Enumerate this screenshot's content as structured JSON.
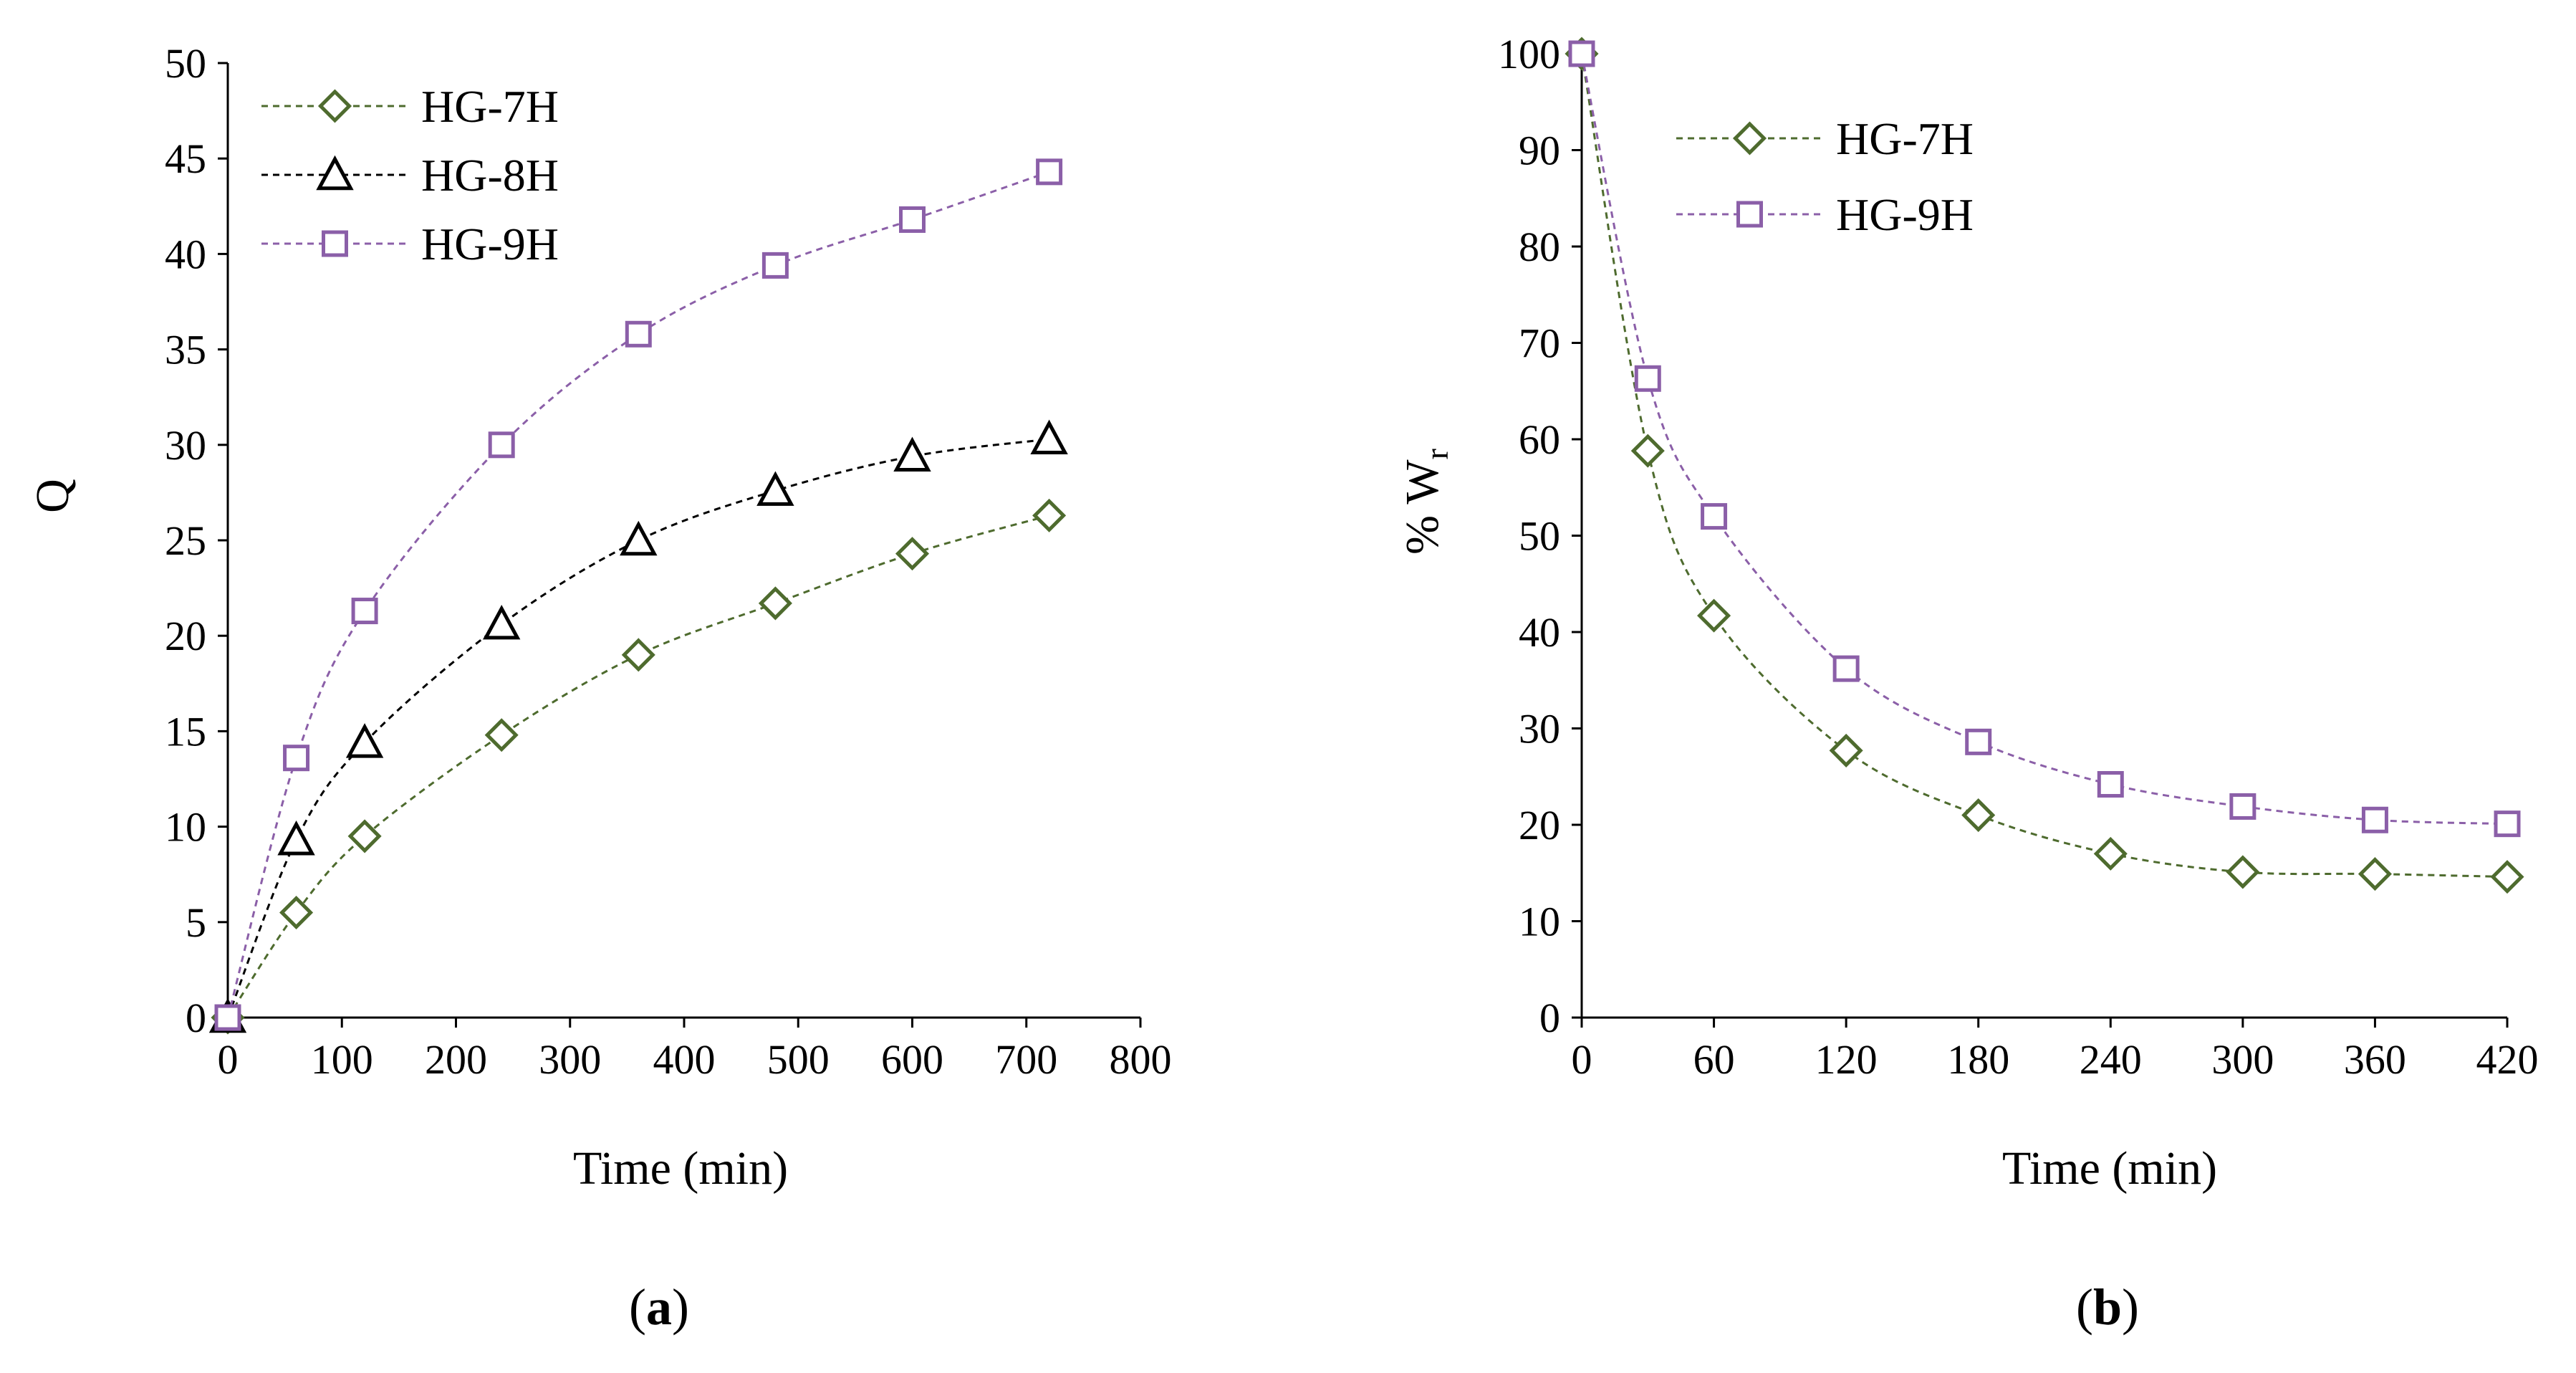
{
  "chart_data": [
    {
      "type": "line",
      "panel_label": "a",
      "title": "",
      "xlabel": "Time (min)",
      "ylabel": "Q",
      "xlim": [
        0,
        800
      ],
      "ylim": [
        0,
        50
      ],
      "xticks": [
        "0",
        "100",
        "200",
        "300",
        "400",
        "500",
        "600",
        "700",
        "800"
      ],
      "yticks": [
        "0",
        "5",
        "10",
        "15",
        "20",
        "25",
        "30",
        "35",
        "40",
        "45",
        "50"
      ],
      "grid": false,
      "legend_position": "top-left",
      "x": [
        0,
        60,
        120,
        240,
        360,
        480,
        600,
        720
      ],
      "series": [
        {
          "name": "HG-7H",
          "marker": "diamond",
          "color": "#4e6b2e",
          "values": [
            0,
            5.5,
            9.5,
            14.8,
            19.0,
            21.7,
            24.3,
            26.3
          ]
        },
        {
          "name": "HG-8H",
          "marker": "triangle",
          "color": "#000000",
          "values": [
            0,
            9.3,
            14.4,
            20.6,
            25.0,
            27.6,
            29.4,
            30.3
          ]
        },
        {
          "name": "HG-9H",
          "marker": "square",
          "color": "#8b5fa8",
          "values": [
            0,
            13.6,
            21.3,
            30.0,
            35.8,
            39.4,
            41.8,
            44.3
          ]
        }
      ]
    },
    {
      "type": "line",
      "panel_label": "b",
      "title": "",
      "xlabel": "Time (min)",
      "ylabel_prefix": "% W",
      "ylabel_subscript": "r",
      "xlim": [
        0,
        420
      ],
      "ylim": [
        0,
        100
      ],
      "xticks": [
        "0",
        "60",
        "120",
        "180",
        "240",
        "300",
        "360",
        "420"
      ],
      "yticks": [
        "0",
        "10",
        "20",
        "30",
        "40",
        "50",
        "60",
        "70",
        "80",
        "90",
        "100"
      ],
      "grid": false,
      "legend_position": "top-right",
      "x": [
        0,
        30,
        60,
        120,
        180,
        240,
        300,
        360,
        420
      ],
      "series": [
        {
          "name": "HG-7H",
          "marker": "diamond",
          "color": "#4e6b2e",
          "values": [
            100,
            58.8,
            41.7,
            27.7,
            21.0,
            17.0,
            15.1,
            14.9,
            14.6
          ]
        },
        {
          "name": "HG-9H",
          "marker": "square",
          "color": "#8b5fa8",
          "values": [
            100,
            66.3,
            52.0,
            36.2,
            28.6,
            24.2,
            21.9,
            20.5,
            20.1
          ]
        }
      ]
    }
  ]
}
